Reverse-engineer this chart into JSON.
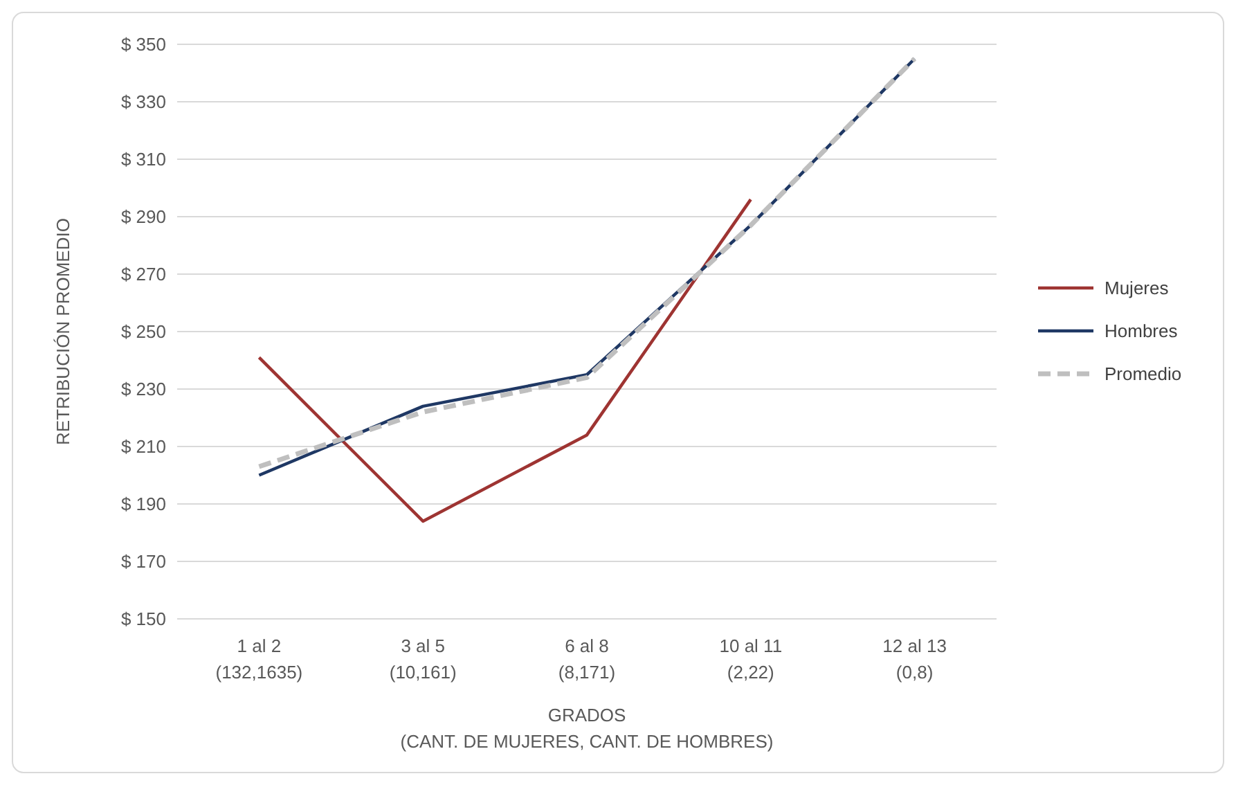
{
  "chart_data": {
    "type": "line",
    "xlabel": "GRADOS\n(CANT. DE MUJERES, CANT. DE HOMBRES)",
    "ylabel": "RETRIBUCIÓN PROMEDIO",
    "categories": [
      "1 al 2\n(132,1635)",
      "3 al 5\n(10,161)",
      "6 al 8\n(8,171)",
      "10 al 11\n(2,22)",
      "12 al 13\n(0,8)"
    ],
    "series": [
      {
        "name": "Mujeres",
        "color": "#9e3432",
        "values": [
          241,
          184,
          214,
          296,
          null
        ]
      },
      {
        "name": "Hombres",
        "color": "#1f3864",
        "values": [
          200,
          224,
          235,
          287,
          345
        ]
      },
      {
        "name": "Promedio",
        "color": "#bfbfbf",
        "line_style": "dashed",
        "values": [
          203,
          222,
          234,
          287,
          345
        ]
      }
    ],
    "ylim": [
      150,
      350
    ],
    "yticks": [
      {
        "value": 150,
        "label": "$ 150"
      },
      {
        "value": 170,
        "label": "$ 170"
      },
      {
        "value": 190,
        "label": "$ 190"
      },
      {
        "value": 210,
        "label": "$ 210"
      },
      {
        "value": 230,
        "label": "$ 230"
      },
      {
        "value": 250,
        "label": "$ 250"
      },
      {
        "value": 270,
        "label": "$ 270"
      },
      {
        "value": 290,
        "label": "$ 290"
      },
      {
        "value": 310,
        "label": "$ 310"
      },
      {
        "value": 330,
        "label": "$ 330"
      },
      {
        "value": 350,
        "label": "$ 350"
      }
    ],
    "grid": "y",
    "legend": "right",
    "marker": "none"
  }
}
